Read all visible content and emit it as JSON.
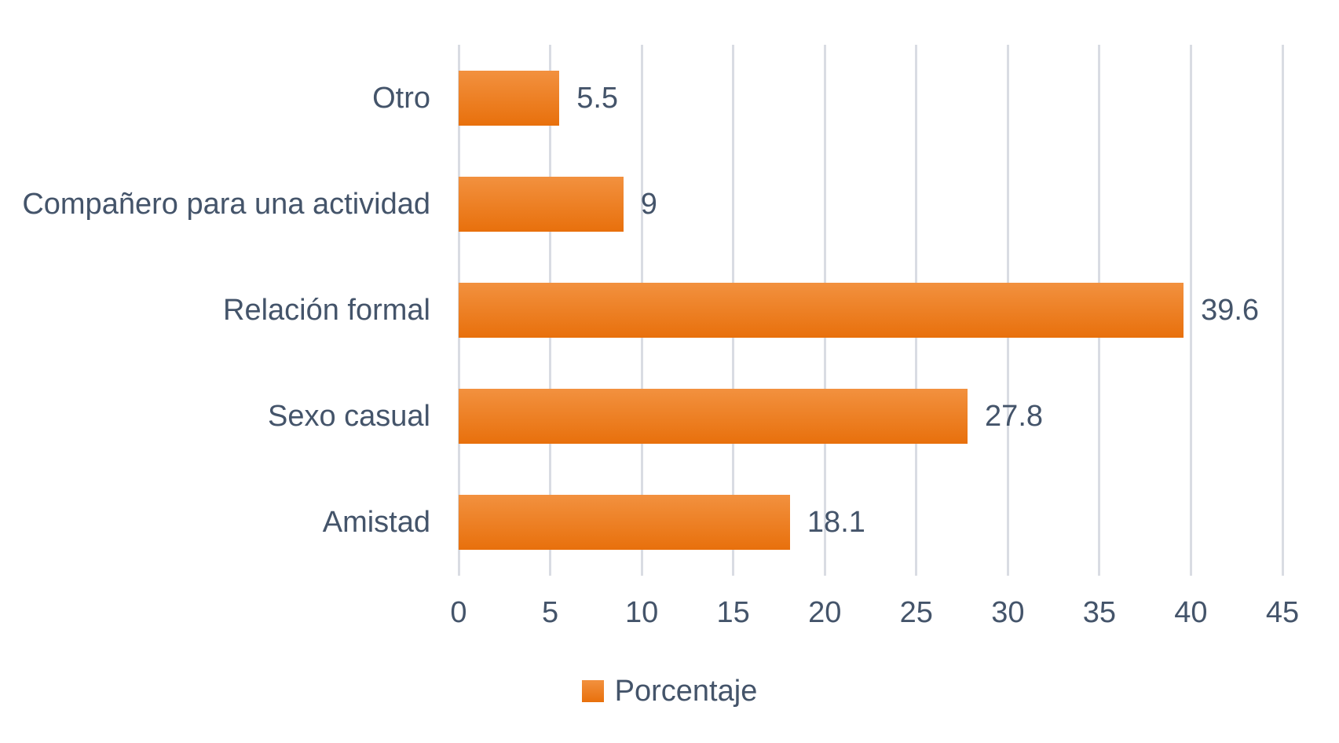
{
  "chart_data": {
    "type": "bar",
    "orientation": "horizontal",
    "categories": [
      "Otro",
      "Compañero para una actividad",
      "Relación formal",
      "Sexo casual",
      "Amistad"
    ],
    "values": [
      5.5,
      9,
      39.6,
      27.8,
      18.1
    ],
    "value_labels": [
      "5.5",
      "9",
      "39.6",
      "27.8",
      "18.1"
    ],
    "series_name": "Porcentaje",
    "xlim": [
      0,
      45
    ],
    "xticks": [
      0,
      5,
      10,
      15,
      20,
      25,
      30,
      35,
      40,
      45
    ],
    "xtick_labels": [
      "0",
      "5",
      "10",
      "15",
      "20",
      "25",
      "30",
      "35",
      "40",
      "45"
    ],
    "grid": "vertical-gridlines-on",
    "legend_position": "bottom-center",
    "data_labels": "outside-end"
  },
  "legend": {
    "label": "Porcentaje",
    "swatch_icon": "orange-gradient-square"
  },
  "colors": {
    "background": "#FFFFFF",
    "text": "#44546A",
    "gridline": "#D9DCE3",
    "bar_gradient_top": "#F2913F",
    "bar_gradient_bottom": "#E8700C"
  }
}
